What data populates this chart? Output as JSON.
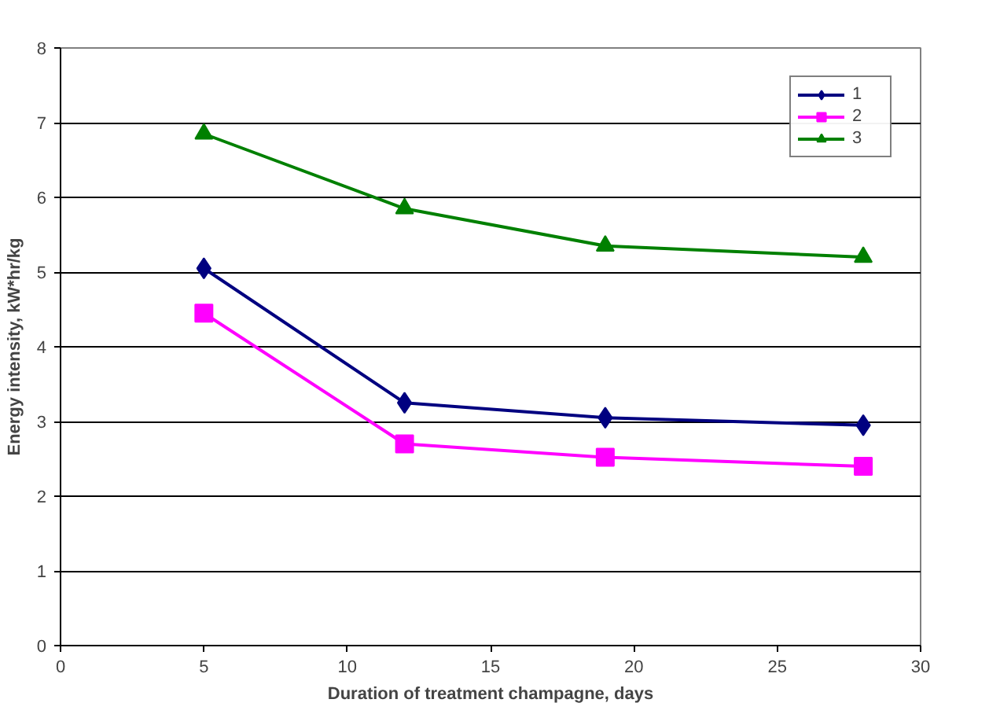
{
  "chart_data": {
    "type": "line",
    "xlabel": "Duration of treatment champagne, days",
    "ylabel": "Energy intensity, kW*hr/kg",
    "x": [
      5,
      12,
      19,
      28
    ],
    "series": [
      {
        "name": "1",
        "color": "#000080",
        "values": [
          5.05,
          3.25,
          3.05,
          2.95
        ],
        "marker": "diamond"
      },
      {
        "name": "2",
        "color": "#ff00ff",
        "values": [
          4.45,
          2.7,
          2.52,
          2.4
        ],
        "marker": "square"
      },
      {
        "name": "3",
        "color": "#008000",
        "values": [
          6.85,
          5.85,
          5.35,
          5.2
        ],
        "marker": "triangle"
      }
    ],
    "xlim": [
      0,
      30
    ],
    "xticks": [
      0,
      5,
      10,
      15,
      20,
      25,
      30
    ],
    "ylim": [
      0,
      8
    ],
    "yticks": [
      0,
      1,
      2,
      3,
      4,
      5,
      6,
      7,
      8
    ],
    "grid": "y",
    "legend": "top right",
    "line_style": "solid"
  }
}
